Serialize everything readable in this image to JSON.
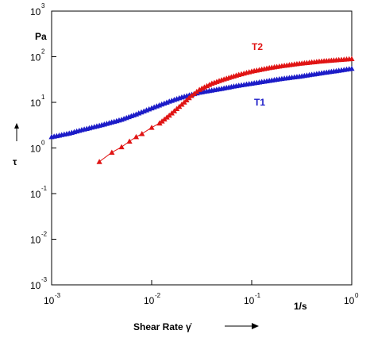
{
  "chart_data": {
    "type": "scatter",
    "title": "",
    "xscale": "log",
    "yscale": "log",
    "xlim": [
      0.001,
      1
    ],
    "ylim": [
      0.001,
      1000
    ],
    "xlabel": "Shear Rate γ̇",
    "xunit": "1/s",
    "ylabel": "τ",
    "yunit": "Pa",
    "x_ticks": [
      {
        "base": "10",
        "exp": "-3",
        "value": 0.001
      },
      {
        "base": "10",
        "exp": "-2",
        "value": 0.01
      },
      {
        "base": "10",
        "exp": "-1",
        "value": 0.1
      },
      {
        "base": "10",
        "exp": "0",
        "value": 1
      }
    ],
    "y_ticks": [
      {
        "base": "10",
        "exp": "-3",
        "value": 0.001
      },
      {
        "base": "10",
        "exp": "-2",
        "value": 0.01
      },
      {
        "base": "10",
        "exp": "-1",
        "value": 0.1
      },
      {
        "base": "10",
        "exp": "0",
        "value": 1
      },
      {
        "base": "10",
        "exp": "1",
        "value": 10
      },
      {
        "base": "10",
        "exp": "2",
        "value": 100
      },
      {
        "base": "10",
        "exp": "3",
        "value": 1000
      }
    ],
    "series": [
      {
        "name": "T1",
        "color": "#1c1cc8",
        "marker": "triangle",
        "points": [
          [
            0.001,
            1.75
          ],
          [
            0.0015,
            2.1
          ],
          [
            0.002,
            2.5
          ],
          [
            0.003,
            3.1
          ],
          [
            0.005,
            4.2
          ],
          [
            0.007,
            5.5
          ],
          [
            0.01,
            7.5
          ],
          [
            0.015,
            10.5
          ],
          [
            0.02,
            13
          ],
          [
            0.03,
            16.5
          ],
          [
            0.05,
            20
          ],
          [
            0.07,
            23
          ],
          [
            0.1,
            26
          ],
          [
            0.15,
            30
          ],
          [
            0.2,
            33
          ],
          [
            0.3,
            37
          ],
          [
            0.5,
            44
          ],
          [
            0.7,
            49
          ],
          [
            1,
            55
          ]
        ]
      },
      {
        "name": "T2",
        "color": "#e01414",
        "marker": "triangle",
        "points": [
          [
            0.003,
            0.5
          ],
          [
            0.004,
            0.8
          ],
          [
            0.005,
            1.05
          ],
          [
            0.006,
            1.4
          ],
          [
            0.007,
            1.75
          ],
          [
            0.008,
            2.05
          ],
          [
            0.01,
            2.8
          ],
          [
            0.012,
            3.5
          ],
          [
            0.015,
            5.2
          ],
          [
            0.02,
            9
          ],
          [
            0.025,
            14
          ],
          [
            0.03,
            19
          ],
          [
            0.04,
            26
          ],
          [
            0.05,
            31
          ],
          [
            0.07,
            39
          ],
          [
            0.1,
            48
          ],
          [
            0.15,
            57
          ],
          [
            0.2,
            63
          ],
          [
            0.3,
            71
          ],
          [
            0.5,
            80
          ],
          [
            0.7,
            85
          ],
          [
            1,
            90
          ]
        ]
      }
    ],
    "legend": "inline labels near curves"
  },
  "colors": {
    "axis": "#000000",
    "t1": "#1c1cc8",
    "t2": "#e01414"
  }
}
